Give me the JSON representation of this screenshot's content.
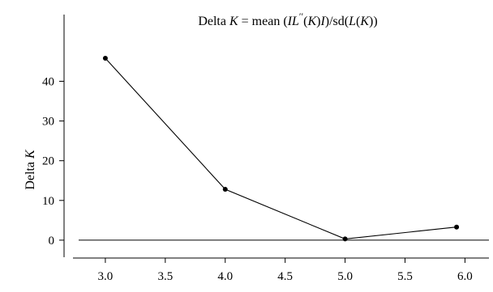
{
  "chart_data": {
    "type": "line",
    "title": "Delta K = mean (IL′′(K)I)/sd(L(K))",
    "title_parts": [
      "Delta ",
      "K",
      " = mean (",
      "IL",
      "′′",
      "(",
      "K",
      ")",
      "I",
      ")/sd(",
      "L",
      "(",
      "K",
      "))"
    ],
    "ylabel": "Delta K",
    "ylabel_parts": [
      "Delta ",
      "K"
    ],
    "xlabel": "",
    "x": [
      3.0,
      4.0,
      5.0,
      5.93
    ],
    "y": [
      45.8,
      12.8,
      0.3,
      3.3
    ],
    "x_ticks": [
      "3.0",
      "3.5",
      "4.0",
      "4.5",
      "5.0",
      "5.5",
      "6.0"
    ],
    "y_ticks": [
      "0",
      "10",
      "20",
      "30",
      "40"
    ],
    "xlim": [
      2.73,
      6.2
    ],
    "ylim": [
      -4.5,
      57
    ],
    "baseline": 0,
    "grid": false,
    "legend": "none"
  }
}
